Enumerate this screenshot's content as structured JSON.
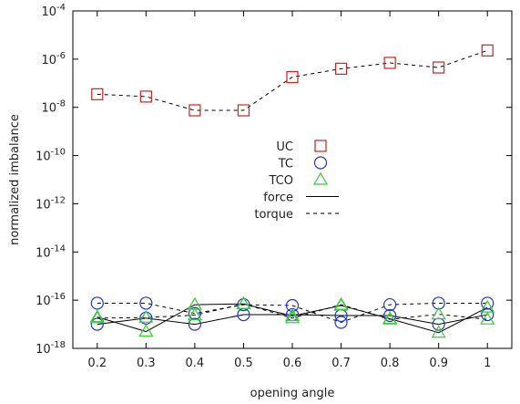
{
  "chart_data": {
    "type": "line",
    "title": "",
    "xlabel": "opening angle",
    "ylabel": "normalized imbalance",
    "x": [
      0.2,
      0.3,
      0.4,
      0.5,
      0.6,
      0.7,
      0.8,
      0.9,
      1.0
    ],
    "x_tick_labels": [
      "0.2",
      "0.3",
      "0.4",
      "0.5",
      "0.6",
      "0.7",
      "0.8",
      "0.9",
      "1"
    ],
    "xlim": [
      0.15,
      1.05
    ],
    "y_scale": "log",
    "ylim": [
      1e-18,
      0.0001
    ],
    "y_tick_mantissa": "10",
    "y_tick_exponents": [
      "-18",
      "-16",
      "-14",
      "-12",
      "-10",
      "-8",
      "-6",
      "-4"
    ],
    "y_tick_values": [
      1e-18,
      1e-16,
      1e-14,
      1e-12,
      1e-10,
      1e-08,
      1e-06,
      0.0001
    ],
    "grid": false,
    "legend_position": "center",
    "legend": {
      "markers": [
        {
          "label": "UC",
          "shape": "square",
          "color": "#cc2222"
        },
        {
          "label": "TC",
          "shape": "circle",
          "color": "#2233cc"
        },
        {
          "label": "TCO",
          "shape": "triangle",
          "color": "#33cc33"
        }
      ],
      "lines": [
        {
          "label": "force",
          "style": "solid"
        },
        {
          "label": "torque",
          "style": "dashed"
        }
      ]
    },
    "series": [
      {
        "name": "UC",
        "marker": "square",
        "color": "#cc2222",
        "line": "dashed",
        "values": [
          3.5e-08,
          2.8e-08,
          7.5e-09,
          7.5e-09,
          1.8e-07,
          4e-07,
          7e-07,
          4.5e-07,
          2.3e-06
        ]
      },
      {
        "name": "TC",
        "marker": "circle",
        "color": "#2233cc",
        "line": "solid",
        "values": [
          1e-17,
          1.8e-17,
          1e-17,
          2.5e-17,
          2.5e-17,
          2.3e-17,
          2.3e-17,
          1e-17,
          2.5e-17
        ]
      },
      {
        "name": "TC",
        "marker": "circle",
        "color": "#2233cc",
        "line": "dashed",
        "values": [
          7.5e-17,
          7.5e-17,
          2.8e-17,
          6.5e-17,
          6e-17,
          1.2e-17,
          6.5e-17,
          7.5e-17,
          7.5e-17
        ]
      },
      {
        "name": "TCO",
        "marker": "triangle",
        "color": "#33cc33",
        "line": "solid",
        "values": [
          2e-17,
          5e-18,
          6.5e-17,
          7e-17,
          2.2e-17,
          6e-17,
          1.7e-17,
          4.5e-18,
          5e-17
        ]
      },
      {
        "name": "TCO",
        "marker": "triangle",
        "color": "#33cc33",
        "line": "dashed",
        "values": [
          1.8e-17,
          1.9e-17,
          2.4e-17,
          7e-17,
          1.8e-17,
          6.5e-17,
          1.6e-17,
          2.6e-17,
          1.6e-17
        ]
      }
    ]
  }
}
